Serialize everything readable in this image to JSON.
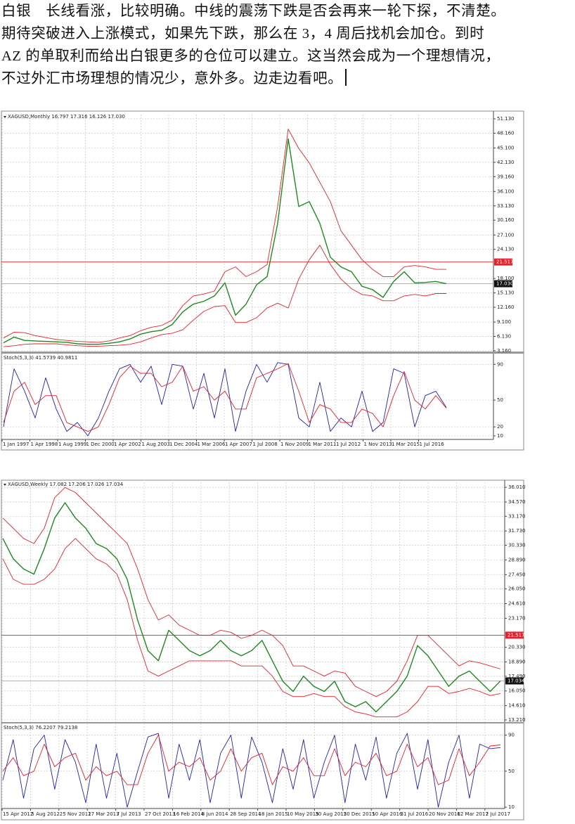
{
  "post": {
    "lines": [
      "白银　长线看涨，比较明确。中线的震荡下跌是否会再来一轮下探，不清楚。",
      "期待突破进入上涨模式，如果先下跌，那么在 3，4 周后找机会加仓。到时",
      "AZ 的单取利而给出白银更多的仓位可以建立。这当然会成为一个理想情况，",
      "不过外汇市场理想的情况少，意外多。边走边看吧。"
    ]
  },
  "chart_data": [
    {
      "type": "line",
      "title": "XAGUSD,Monthly 16.797 17.316 16.126 17.030",
      "ylim": [
        3.0,
        52.0
      ],
      "yticks": [
        {
          "value": 51.13,
          "label": "51.130"
        },
        {
          "value": 48.16,
          "label": "48.160"
        },
        {
          "value": 45.1,
          "label": "45.100"
        },
        {
          "value": 42.13,
          "label": "42.130"
        },
        {
          "value": 39.16,
          "label": "39.160"
        },
        {
          "value": 36.1,
          "label": "36.100"
        },
        {
          "value": 33.13,
          "label": "33.130"
        },
        {
          "value": 30.16,
          "label": "30.160"
        },
        {
          "value": 27.1,
          "label": "27.100"
        },
        {
          "value": 24.13,
          "label": "24.130"
        },
        {
          "value": 18.1,
          "label": "18.100"
        },
        {
          "value": 15.13,
          "label": "15.130"
        },
        {
          "value": 12.16,
          "label": "12.160"
        },
        {
          "value": 9.1,
          "label": "9.100"
        },
        {
          "value": 6.13,
          "label": "6.130"
        },
        {
          "value": 3.16,
          "label": "3.160"
        }
      ],
      "level": 21.517,
      "level_color": "#e8202a",
      "last": {
        "value": 17.03,
        "label": "17.030"
      },
      "grid": true,
      "x_labels": [
        "1 Jan 1997",
        "1 Apr 1998",
        "1 Aug 1999",
        "1 Dec 2000",
        "1 Apr 2002",
        "1 Aug 2003",
        "1 Dec 2004",
        "1 Mar 2006",
        "1 Apr 2007",
        "1 Jul 2008",
        "1 Nov 2009",
        "1 Mar 2011",
        "1 Jul 2012",
        "1 Nov 2013",
        "1 Mar 2015",
        "1 Jul 2016"
      ],
      "series": [
        {
          "color": "#1e8a1e",
          "values": [
            4.8,
            6.0,
            5.3,
            5.2,
            5.1,
            5.0,
            4.9,
            4.6,
            4.5,
            4.5,
            4.7,
            5.0,
            5.6,
            6.6,
            7.1,
            7.4,
            8.6,
            11.2,
            12.8,
            13.4,
            14.5,
            17.2,
            10.5,
            12.8,
            16.8,
            18.5,
            29.5,
            47.0,
            33.0,
            34.0,
            29.5,
            22.5,
            20.5,
            19.5,
            16.5,
            15.8,
            14.2,
            17.5,
            19.5,
            17.2,
            17.3,
            17.5,
            17.03
          ]
        },
        {
          "color": "#e8202a",
          "values": [
            5.8,
            7.0,
            6.9,
            6.3,
            5.9,
            5.5,
            5.3,
            5.1,
            5.0,
            4.9,
            5.2,
            5.8,
            6.3,
            7.3,
            8.0,
            8.4,
            9.5,
            12.5,
            14.5,
            14.9,
            15.5,
            19.5,
            20.5,
            18.5,
            19.5,
            21,
            33,
            49,
            45,
            42,
            38,
            34,
            28,
            25,
            22,
            20,
            18.5,
            18.5,
            20.5,
            20.8,
            20.5,
            20,
            20
          ]
        },
        {
          "color": "#e8202a",
          "values": [
            4.0,
            4.2,
            4.5,
            4.6,
            4.6,
            4.6,
            4.4,
            4.2,
            4.1,
            4.1,
            4.2,
            4.3,
            4.5,
            5.0,
            5.8,
            6.5,
            6.8,
            7.5,
            9.5,
            11.3,
            12.3,
            12.5,
            9.0,
            9.0,
            10.0,
            12,
            13.0,
            12,
            18,
            22,
            25,
            21,
            18,
            16,
            14.8,
            14.5,
            13.5,
            13.5,
            14.5,
            14.8,
            14.5,
            15.0,
            15.0
          ]
        }
      ],
      "stoch": {
        "title": "Stoch(5,3,3) 41.5739 40.9811",
        "ylim": [
          6,
          102
        ],
        "yticks": [
          90,
          50,
          20,
          10
        ],
        "series": [
          {
            "color": "#2020b0",
            "values": [
              20,
              85,
              60,
              30,
              75,
              40,
              15,
              25,
              10,
              30,
              60,
              85,
              90,
              70,
              88,
              45,
              90,
              88,
              40,
              80,
              30,
              85,
              15,
              60,
              90,
              70,
              92,
              90,
              30,
              20,
              70,
              15,
              30,
              20,
              60,
              15,
              25,
              85,
              80,
              20,
              55,
              60,
              41.57
            ]
          },
          {
            "color": "#e8202a",
            "values": [
              25,
              60,
              70,
              45,
              55,
              55,
              25,
              20,
              15,
              20,
              45,
              75,
              88,
              80,
              80,
              65,
              70,
              88,
              60,
              65,
              50,
              60,
              40,
              40,
              75,
              80,
              85,
              91,
              60,
              25,
              45,
              40,
              25,
              25,
              40,
              35,
              20,
              55,
              82,
              50,
              40,
              55,
              40.98
            ]
          }
        ]
      }
    },
    {
      "type": "line",
      "title": "XAGUSD,Weekly 17.082 17.206 17.026 17.034",
      "ylim": [
        13.0,
        36.5
      ],
      "yticks": [
        {
          "value": 36.01,
          "label": "36.010"
        },
        {
          "value": 34.57,
          "label": "34.570"
        },
        {
          "value": 33.17,
          "label": "33.170"
        },
        {
          "value": 31.73,
          "label": "31.730"
        },
        {
          "value": 30.33,
          "label": "30.330"
        },
        {
          "value": 28.89,
          "label": "28.890"
        },
        {
          "value": 27.45,
          "label": "27.450"
        },
        {
          "value": 26.05,
          "label": "26.050"
        },
        {
          "value": 24.61,
          "label": "24.610"
        },
        {
          "value": 23.17,
          "label": "23.170"
        },
        {
          "value": 20.33,
          "label": "20.330"
        },
        {
          "value": 18.89,
          "label": "18.890"
        },
        {
          "value": 17.49,
          "label": "17.490"
        },
        {
          "value": 16.05,
          "label": "16.050"
        },
        {
          "value": 14.61,
          "label": "14.610"
        },
        {
          "value": 13.21,
          "label": "13.210"
        }
      ],
      "level": 21.517,
      "level_color": "#e8202a",
      "last": 17.034,
      "grid": true,
      "x_labels": [
        "15 Apr 2012",
        "5 Aug 2012",
        "25 Nov 2012",
        "17 Mar 2013",
        "7 Jul 2013",
        "27 Oct 2013",
        "16 Feb 2014",
        "8 Jun 2014",
        "28 Sep 2014",
        "18 Jan 2015",
        "10 May 2015",
        "30 Aug 2015",
        "20 Dec 2015",
        "10 Apr 2016",
        "31 Jul 2016",
        "20 Nov 2016",
        "12 Mar 2017",
        "2 Jul 2017"
      ],
      "series": [
        {
          "color": "#1e8a1e",
          "values": [
            31,
            29,
            28,
            27.5,
            30,
            33,
            34.5,
            33,
            32,
            30.5,
            30,
            29,
            27,
            23,
            20,
            19,
            22,
            21,
            20,
            19.5,
            20,
            21,
            20,
            19.5,
            20,
            21,
            19,
            17,
            16,
            17.5,
            16.5,
            16,
            17,
            15,
            14.5,
            15,
            14,
            15,
            16,
            17.5,
            20.5,
            19.5,
            18,
            16.5,
            17.5,
            18,
            17,
            16,
            17.03
          ]
        },
        {
          "color": "#e8202a",
          "values": [
            33,
            32,
            31,
            30.5,
            32,
            35,
            36,
            35.5,
            34.5,
            33.5,
            32.5,
            31.5,
            30.5,
            28,
            25,
            23,
            23.5,
            22.5,
            22,
            21.5,
            21.5,
            22,
            21.8,
            21.2,
            21.5,
            22,
            21.5,
            20.5,
            18.5,
            18.5,
            18,
            17.5,
            18,
            17.8,
            16.5,
            16,
            15.5,
            16,
            17,
            19,
            21.5,
            21.5,
            20.5,
            19.5,
            18.5,
            19,
            18.8,
            18.5,
            18.2
          ]
        },
        {
          "color": "#e8202a",
          "values": [
            29,
            27,
            26.5,
            26.5,
            27,
            28,
            30,
            31,
            30,
            29,
            28.5,
            27.5,
            25,
            21,
            18,
            17.5,
            18,
            18.5,
            19,
            19,
            19,
            19,
            19,
            18.5,
            18.5,
            18.5,
            17.5,
            16,
            15.5,
            15.5,
            15.8,
            15.5,
            15.5,
            14.5,
            14,
            13.8,
            13.5,
            13.5,
            13.5,
            14,
            15,
            16.5,
            16.5,
            15.8,
            16,
            16.3,
            16,
            15.6,
            15.8
          ]
        }
      ],
      "stoch": {
        "title": "Stoch(5,3,3) 76.2207 79.2138",
        "ylim": [
          8.5,
          103
        ],
        "yticks": [
          90,
          50,
          10
        ],
        "series": [
          {
            "color": "#2020b0",
            "values": [
              40,
              85,
              20,
              75,
              90,
              30,
              85,
              60,
              15,
              80,
              20,
              70,
              10,
              50,
              88,
              92,
              20,
              80,
              40,
              85,
              15,
              70,
              90,
              20,
              88,
              60,
              15,
              75,
              30,
              85,
              20,
              60,
              90,
              15,
              80,
              40,
              88,
              20,
              70,
              92,
              30,
              85,
              10,
              60,
              90,
              20,
              80,
              75,
              76.22
            ]
          },
          {
            "color": "#e8202a",
            "values": [
              50,
              65,
              45,
              50,
              80,
              55,
              65,
              70,
              40,
              55,
              45,
              50,
              35,
              35,
              70,
              90,
              50,
              60,
              55,
              65,
              40,
              50,
              75,
              50,
              65,
              70,
              35,
              55,
              50,
              65,
              45,
              45,
              75,
              45,
              60,
              55,
              70,
              45,
              50,
              80,
              55,
              65,
              35,
              40,
              75,
              45,
              60,
              78,
              79.21
            ]
          }
        ]
      }
    }
  ]
}
